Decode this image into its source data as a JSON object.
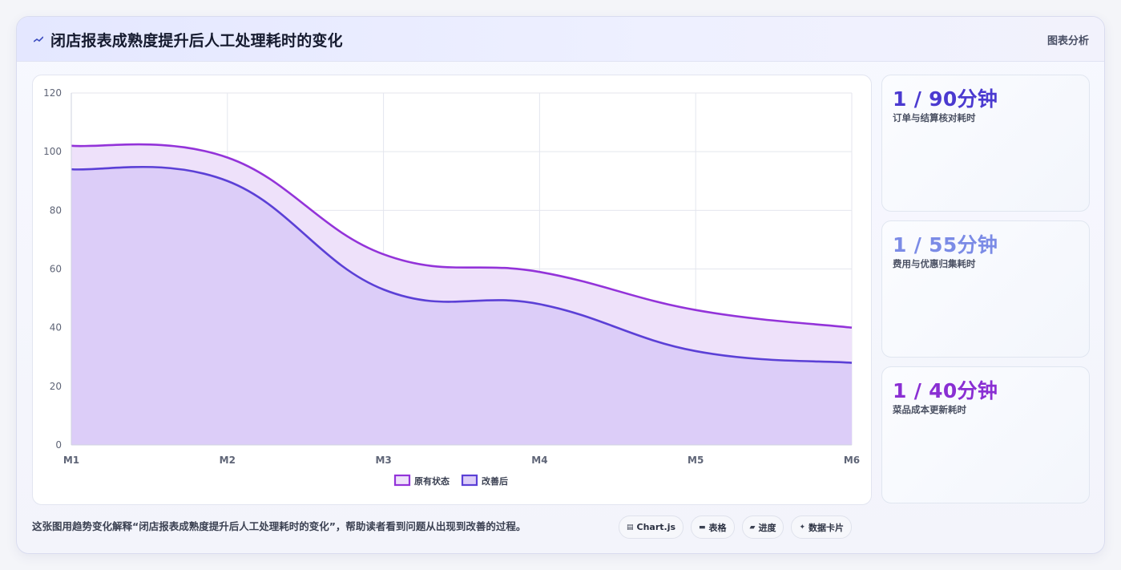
{
  "header": {
    "title": "闭店报表成熟度提升后人工处理耗时的变化",
    "action_label": "图表分析"
  },
  "chart_data": {
    "type": "area",
    "categories": [
      "M1",
      "M2",
      "M3",
      "M4",
      "M5",
      "M6"
    ],
    "series": [
      {
        "name": "原有状态",
        "values": [
          102,
          98,
          65,
          59,
          46,
          40
        ],
        "color": "#9333d9",
        "fill": "#eee1fa"
      },
      {
        "name": "改善后",
        "values": [
          94,
          90,
          53,
          48,
          32,
          28
        ],
        "color": "#5b40d6",
        "fill": "#dccdf8"
      }
    ],
    "ylim": [
      0,
      120
    ],
    "yticks": [
      0,
      20,
      40,
      60,
      80,
      100,
      120
    ],
    "grid": true,
    "legend_position": "bottom"
  },
  "stats": [
    {
      "value": "1 / 90分钟",
      "label": "订单与结算核对耗时",
      "color": "#4b3ad0"
    },
    {
      "value": "1 / 55分钟",
      "label": "费用与优惠归集耗时",
      "color": "#7b8be6"
    },
    {
      "value": "1 / 40分钟",
      "label": "菜品成本更新耗时",
      "color": "#8a2fd3"
    }
  ],
  "caption": "这张图用趋势变化解释“闭店报表成熟度提升后人工处理耗时的变化”，帮助读者看到问题从出现到改善的过程。",
  "chips": [
    {
      "icon": "chart-icon",
      "glyph": "▤",
      "label": "Chart.js"
    },
    {
      "icon": "table-icon",
      "glyph": "▬",
      "label": "表格"
    },
    {
      "icon": "progress-icon",
      "glyph": "▰",
      "label": "进度"
    },
    {
      "icon": "card-icon",
      "glyph": "✦",
      "label": "数据卡片"
    }
  ]
}
